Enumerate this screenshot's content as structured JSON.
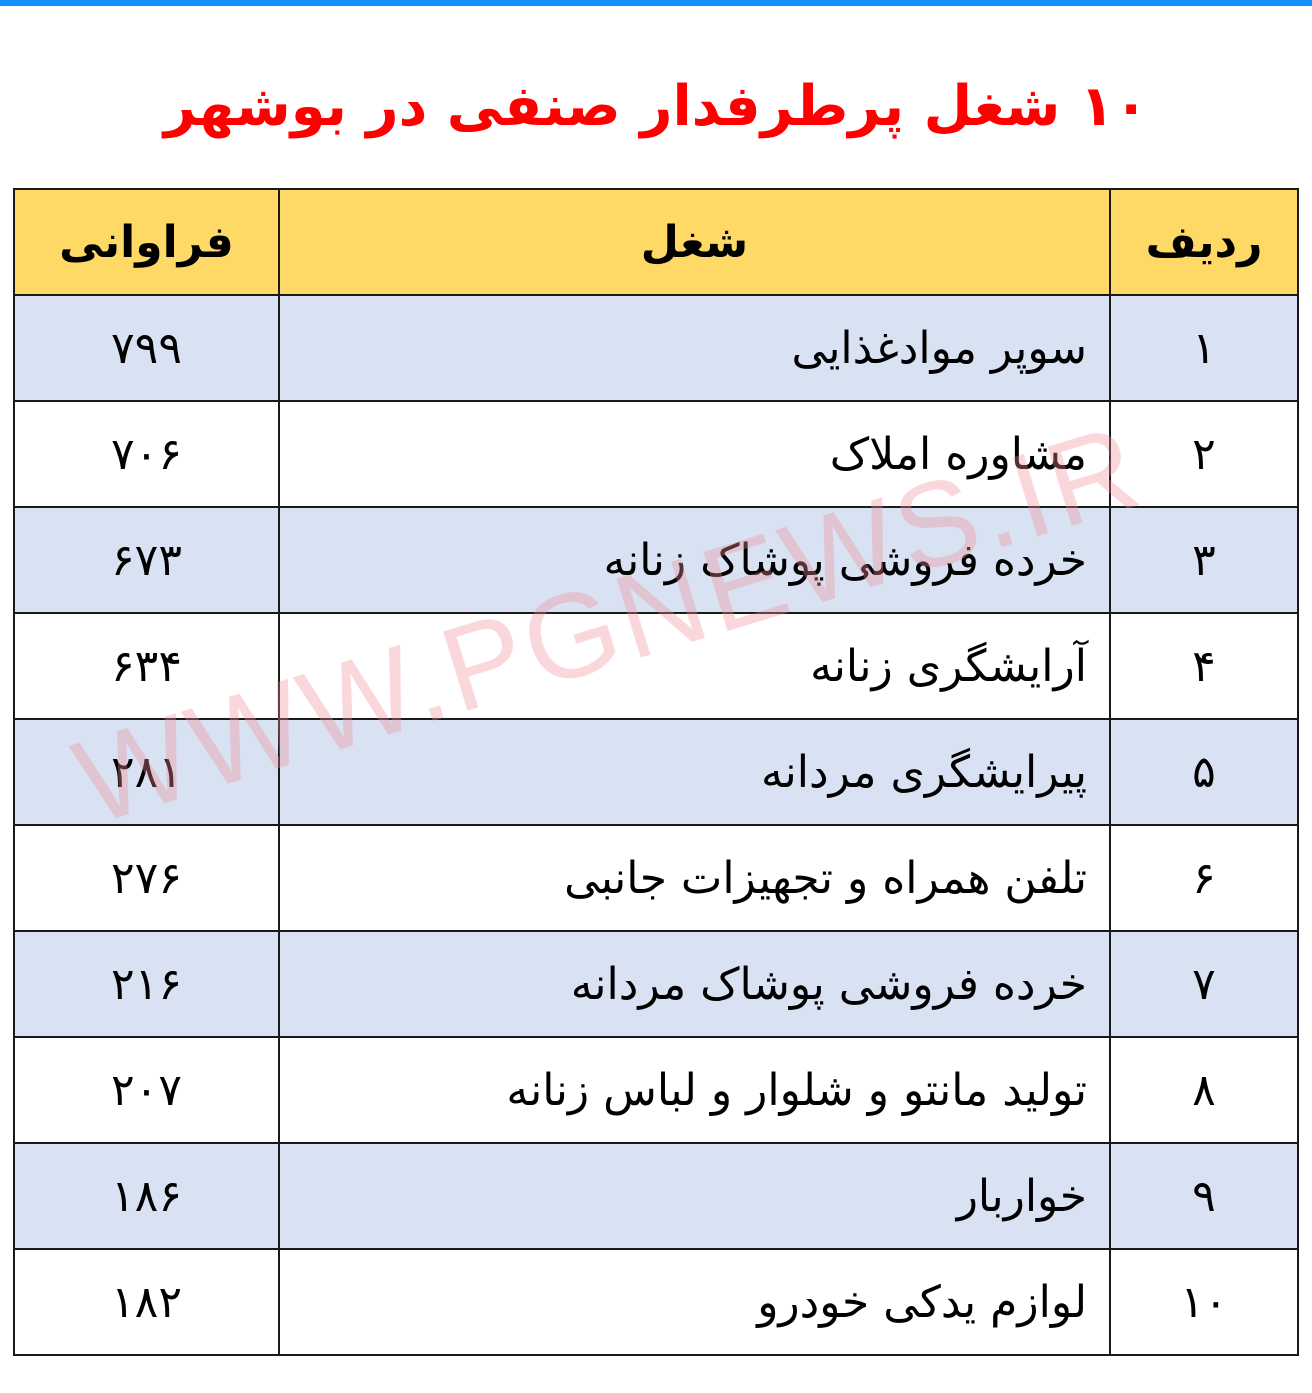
{
  "title": "۱۰ شغل پرطرفدار صنفی در بوشهر",
  "watermark": "WWW.PGNEWS.IR",
  "colors": {
    "topbar": "#118ffd",
    "title": "#ff0000",
    "header_bg": "#ffd966",
    "stripe_bg": "#d9e2f3"
  },
  "table": {
    "headers": {
      "rank": "ردیف",
      "job": "شغل",
      "freq": "فراوانی"
    },
    "rows": [
      {
        "rank": "۱",
        "job": "سوپر موادغذایی",
        "freq": "۷۹۹"
      },
      {
        "rank": "۲",
        "job": "مشاوره املاک",
        "freq": "۷۰۶"
      },
      {
        "rank": "۳",
        "job": "خرده فروشی پوشاک زنانه",
        "freq": "۶۷۳"
      },
      {
        "rank": "۴",
        "job": "آرایشگری زنانه",
        "freq": "۶۳۴"
      },
      {
        "rank": "۵",
        "job": "پیرایشگری مردانه",
        "freq": "۲۸۱"
      },
      {
        "rank": "۶",
        "job": "تلفن همراه و تجهیزات جانبی",
        "freq": "۲۷۶"
      },
      {
        "rank": "۷",
        "job": "خرده فروشی پوشاک مردانه",
        "freq": "۲۱۶"
      },
      {
        "rank": "۸",
        "job": "تولید مانتو و شلوار و لباس زنانه",
        "freq": "۲۰۷"
      },
      {
        "rank": "۹",
        "job": "خواربار",
        "freq": "۱۸۶"
      },
      {
        "rank": "۱۰",
        "job": "لوازم یدکی خودرو",
        "freq": "۱۸۲"
      }
    ]
  }
}
